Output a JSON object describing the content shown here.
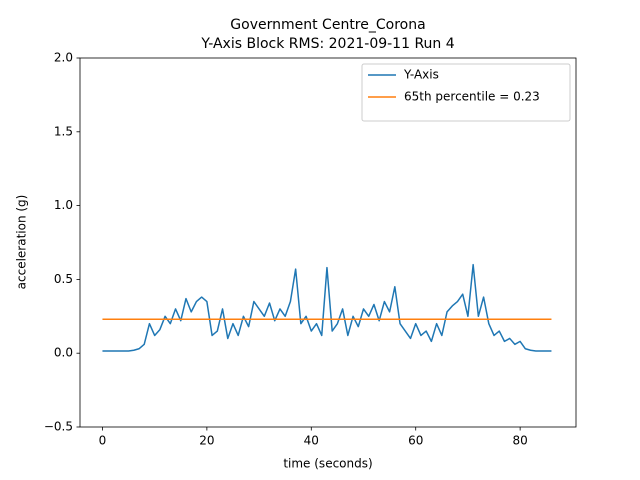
{
  "chart_data": {
    "type": "line",
    "title": "Government Centre_Corona",
    "subtitle": "Y-Axis Block RMS: 2021-09-11 Run 4",
    "xlabel": "time (seconds)",
    "ylabel": "acceleration (g)",
    "xlim": [
      -4.3,
      90.7
    ],
    "ylim": [
      -0.5,
      2.0
    ],
    "xticks": [
      0,
      20,
      40,
      60,
      80
    ],
    "yticks": [
      {
        "value": -0.5,
        "label": "−0.5"
      },
      {
        "value": 0,
        "label": "0.0"
      },
      {
        "value": 0.5,
        "label": "0.5"
      },
      {
        "value": 1.0,
        "label": "1.0"
      },
      {
        "value": 1.5,
        "label": "1.5"
      },
      {
        "value": 2.0,
        "label": "2.0"
      }
    ],
    "legend": "upper right",
    "series": [
      {
        "name": "Y-Axis",
        "color": "#1f77b4",
        "x": [
          0,
          1,
          2,
          3,
          4,
          5,
          6,
          7,
          8,
          9,
          10,
          11,
          12,
          13,
          14,
          15,
          16,
          17,
          18,
          19,
          20,
          21,
          22,
          23,
          24,
          25,
          26,
          27,
          28,
          29,
          30,
          31,
          32,
          33,
          34,
          35,
          36,
          37,
          38,
          39,
          40,
          41,
          42,
          43,
          44,
          45,
          46,
          47,
          48,
          49,
          50,
          51,
          52,
          53,
          54,
          55,
          56,
          57,
          58,
          59,
          60,
          61,
          62,
          63,
          64,
          65,
          66,
          67,
          68,
          69,
          70,
          71,
          72,
          73,
          74,
          75,
          76,
          77,
          78,
          79,
          80,
          81,
          82,
          83,
          84,
          85,
          86
        ],
        "values": [
          0.015,
          0.015,
          0.015,
          0.015,
          0.015,
          0.015,
          0.02,
          0.03,
          0.06,
          0.2,
          0.12,
          0.16,
          0.25,
          0.2,
          0.3,
          0.22,
          0.37,
          0.28,
          0.35,
          0.38,
          0.35,
          0.12,
          0.15,
          0.3,
          0.1,
          0.2,
          0.12,
          0.25,
          0.18,
          0.35,
          0.3,
          0.25,
          0.34,
          0.22,
          0.3,
          0.25,
          0.35,
          0.57,
          0.2,
          0.25,
          0.15,
          0.2,
          0.12,
          0.58,
          0.15,
          0.2,
          0.3,
          0.12,
          0.25,
          0.18,
          0.3,
          0.25,
          0.33,
          0.22,
          0.35,
          0.28,
          0.45,
          0.2,
          0.15,
          0.1,
          0.2,
          0.12,
          0.15,
          0.08,
          0.2,
          0.12,
          0.28,
          0.32,
          0.35,
          0.4,
          0.25,
          0.6,
          0.25,
          0.38,
          0.2,
          0.12,
          0.15,
          0.08,
          0.1,
          0.06,
          0.08,
          0.03,
          0.02,
          0.015,
          0.015,
          0.015,
          0.015
        ]
      },
      {
        "name": "65th percentile = 0.23",
        "color": "#ff7f0e",
        "x": [
          0,
          86
        ],
        "values": [
          0.23,
          0.23
        ]
      }
    ]
  }
}
